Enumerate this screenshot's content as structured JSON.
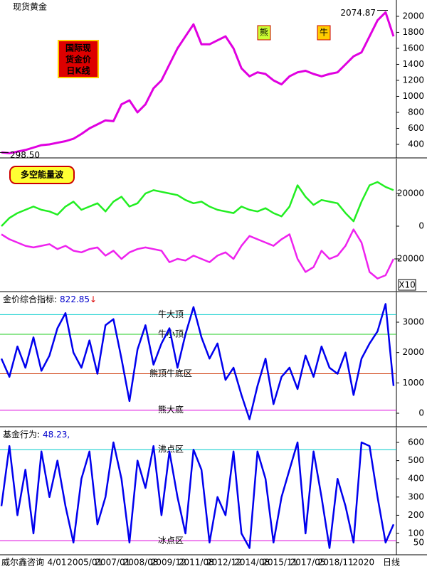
{
  "chart_data": [
    {
      "type": "line",
      "title": "现货黄金",
      "badge": [
        "国际现",
        "货金价",
        "日K线"
      ],
      "markers": [
        "熊",
        "牛"
      ],
      "high": {
        "value": 2074.87,
        "label": "2074.87"
      },
      "low": {
        "value": 298.5,
        "label": "298.50"
      },
      "ylim": [
        231,
        2204
      ],
      "yticks": [
        400,
        600,
        800,
        1000,
        1200,
        1400,
        1600,
        1800,
        2000
      ],
      "series": [
        {
          "color": "#e000e0",
          "values": [
            300,
            290,
            310,
            330,
            360,
            390,
            400,
            420,
            440,
            470,
            530,
            600,
            650,
            700,
            690,
            900,
            950,
            800,
            900,
            1100,
            1200,
            1400,
            1600,
            1750,
            1900,
            1650,
            1650,
            1700,
            1750,
            1600,
            1350,
            1250,
            1300,
            1280,
            1200,
            1150,
            1250,
            1300,
            1320,
            1280,
            1250,
            1280,
            1300,
            1400,
            1500,
            1550,
            1750,
            1950,
            2050,
            1750
          ]
        }
      ]
    },
    {
      "type": "line",
      "title": "多空能量波",
      "scale_note": "X10",
      "ylim": [
        -40000,
        41300
      ],
      "yticks": [
        20000,
        0,
        -20000
      ],
      "series": [
        {
          "color": "#22ee22",
          "values": [
            0,
            5000,
            8000,
            10000,
            12000,
            10000,
            9000,
            7000,
            12000,
            15000,
            10000,
            12000,
            14000,
            9000,
            15000,
            18000,
            12000,
            14000,
            20000,
            22000,
            21000,
            20000,
            19000,
            16000,
            14000,
            15000,
            12000,
            10000,
            9000,
            8000,
            12000,
            10000,
            9000,
            11000,
            8000,
            6000,
            12000,
            25000,
            18000,
            13000,
            16000,
            15000,
            14000,
            8000,
            3000,
            15000,
            25000,
            27000,
            24000,
            22000
          ]
        },
        {
          "color": "#ee22ee",
          "values": [
            -5000,
            -8000,
            -10000,
            -12000,
            -13000,
            -12000,
            -11000,
            -14000,
            -12000,
            -15000,
            -16000,
            -14000,
            -13000,
            -18000,
            -15000,
            -20000,
            -16000,
            -14000,
            -13000,
            -14000,
            -15000,
            -22000,
            -20000,
            -21000,
            -18000,
            -20000,
            -22000,
            -18000,
            -16000,
            -20000,
            -12000,
            -6000,
            -8000,
            -10000,
            -12000,
            -8000,
            -5000,
            -20000,
            -28000,
            -25000,
            -15000,
            -20000,
            -18000,
            -12000,
            -2000,
            -10000,
            -28000,
            -32000,
            -30000,
            -20000
          ]
        }
      ]
    },
    {
      "type": "line",
      "title": "金价综合指标:",
      "readout": "822.85",
      "arrow": "↓",
      "ylim": [
        -445,
        3984
      ],
      "yticks": [
        3000,
        2000,
        1000,
        0
      ],
      "levels": [
        {
          "value": 3250,
          "label": "牛大顶",
          "color": "#00cccc"
        },
        {
          "value": 2600,
          "label": "牛小顶",
          "color": "#22cc22"
        },
        {
          "value": 1300,
          "label": "熊顶牛底区",
          "color": "#cc3300"
        },
        {
          "value": 100,
          "label": "熊大底",
          "color": "#dd00dd"
        }
      ],
      "series": [
        {
          "color": "#0000ee",
          "values": [
            1800,
            1200,
            2200,
            1500,
            2500,
            1400,
            1900,
            2800,
            3300,
            2000,
            1500,
            2400,
            1300,
            2900,
            3100,
            1800,
            400,
            2100,
            2900,
            1600,
            2300,
            2800,
            1500,
            2600,
            3500,
            2500,
            1800,
            2300,
            1100,
            1500,
            600,
            -200,
            900,
            1800,
            300,
            1200,
            1500,
            800,
            1900,
            1200,
            2200,
            1500,
            1300,
            2000,
            600,
            1800,
            2300,
            2700,
            3600,
            900
          ]
        }
      ]
    },
    {
      "type": "line",
      "title": "基金行为:",
      "readout": "48.23,",
      "ylim": [
        -17,
        682
      ],
      "yticks": [
        600,
        500,
        400,
        300,
        200,
        100,
        50
      ],
      "levels": [
        {
          "value": 560,
          "label": "沸点区",
          "color": "#00cccc"
        },
        {
          "value": 60,
          "label": "冰点区",
          "color": "#dd00dd"
        }
      ],
      "x_tick_labels": [
        "威尔鑫咨询",
        "4/01",
        "2005/01",
        "2007/01",
        "2008/08",
        "2009/12",
        "2011/08",
        "2012/12",
        "2014/08",
        "2015/11",
        "2017/05",
        "2018/11",
        "2020",
        "日线"
      ],
      "series": [
        {
          "color": "#0000ee",
          "values": [
            250,
            580,
            200,
            450,
            100,
            550,
            300,
            500,
            250,
            50,
            400,
            550,
            150,
            300,
            600,
            400,
            50,
            500,
            350,
            580,
            200,
            550,
            300,
            100,
            560,
            450,
            50,
            300,
            200,
            550,
            100,
            20,
            550,
            400,
            50,
            300,
            450,
            600,
            100,
            550,
            300,
            20,
            400,
            250,
            50,
            600,
            580,
            300,
            50,
            150
          ]
        }
      ]
    }
  ]
}
